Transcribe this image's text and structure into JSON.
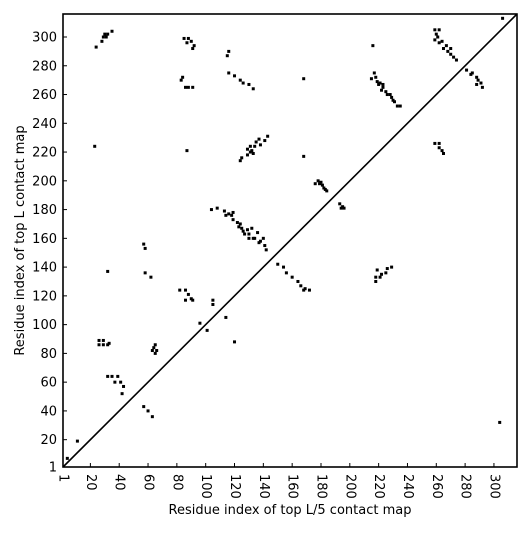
{
  "chart_data": {
    "type": "scatter",
    "title": "",
    "xlabel": "Residue index of top L/5 contact map",
    "ylabel": "Residue index of top L contact map",
    "xlim": [
      1,
      316
    ],
    "ylim": [
      1,
      316
    ],
    "xticks": [
      1,
      20,
      40,
      60,
      80,
      100,
      120,
      140,
      160,
      180,
      200,
      220,
      240,
      260,
      280,
      300
    ],
    "yticks": [
      1,
      20,
      40,
      60,
      80,
      100,
      120,
      140,
      160,
      180,
      200,
      220,
      240,
      260,
      280,
      300
    ],
    "diagonal": true,
    "grid": false,
    "marker_color": "#000000",
    "series": [
      {
        "values": [
          [
            4,
            7
          ],
          [
            11,
            19
          ],
          [
            57,
            43
          ],
          [
            60,
            40
          ],
          [
            63,
            36
          ],
          [
            42,
            52
          ],
          [
            43,
            57
          ],
          [
            41,
            60
          ],
          [
            37,
            60
          ],
          [
            39,
            64
          ],
          [
            35,
            64
          ],
          [
            32,
            64
          ],
          [
            26,
            86
          ],
          [
            29,
            86
          ],
          [
            32,
            86
          ],
          [
            33,
            87
          ],
          [
            29,
            89
          ],
          [
            26,
            89
          ],
          [
            65,
            80
          ],
          [
            63,
            82
          ],
          [
            66,
            82
          ],
          [
            64,
            84
          ],
          [
            65,
            86
          ],
          [
            120,
            88
          ],
          [
            101,
            96
          ],
          [
            96,
            101
          ],
          [
            114,
            105
          ],
          [
            105,
            114
          ],
          [
            105,
            117
          ],
          [
            82,
            124
          ],
          [
            86,
            124
          ],
          [
            88,
            121
          ],
          [
            90,
            118
          ],
          [
            91,
            117
          ],
          [
            86,
            117
          ],
          [
            62,
            133
          ],
          [
            58,
            136
          ],
          [
            32,
            137
          ],
          [
            150,
            142
          ],
          [
            154,
            140
          ],
          [
            156,
            136
          ],
          [
            160,
            133
          ],
          [
            164,
            130
          ],
          [
            166,
            127
          ],
          [
            169,
            125
          ],
          [
            172,
            124
          ],
          [
            168,
            124
          ],
          [
            142,
            152
          ],
          [
            141,
            155
          ],
          [
            137,
            157
          ],
          [
            133,
            160
          ],
          [
            130,
            163
          ],
          [
            126,
            165
          ],
          [
            123,
            168
          ],
          [
            122,
            171
          ],
          [
            119,
            173
          ],
          [
            116,
            177
          ],
          [
            114,
            176
          ],
          [
            118,
            176
          ],
          [
            119,
            178
          ],
          [
            113,
            179
          ],
          [
            108,
            181
          ],
          [
            104,
            180
          ],
          [
            125,
            167
          ],
          [
            129,
            166
          ],
          [
            127,
            163
          ],
          [
            130,
            160
          ],
          [
            134,
            160
          ],
          [
            138,
            158
          ],
          [
            140,
            160
          ],
          [
            136,
            164
          ],
          [
            132,
            167
          ],
          [
            124,
            170
          ],
          [
            58,
            153
          ],
          [
            57,
            156
          ],
          [
            178,
            200
          ],
          [
            179,
            198
          ],
          [
            181,
            197
          ],
          [
            182,
            195
          ],
          [
            183,
            194
          ],
          [
            184,
            193
          ],
          [
            180,
            199
          ],
          [
            176,
            198
          ],
          [
            193,
            184
          ],
          [
            195,
            182
          ],
          [
            196,
            181
          ],
          [
            194,
            181
          ],
          [
            168,
            217
          ],
          [
            87,
            221
          ],
          [
            23,
            224
          ],
          [
            124,
            214
          ],
          [
            125,
            216
          ],
          [
            129,
            218
          ],
          [
            131,
            220
          ],
          [
            132,
            221
          ],
          [
            131,
            224
          ],
          [
            134,
            224
          ],
          [
            138,
            225
          ],
          [
            135,
            227
          ],
          [
            141,
            228
          ],
          [
            137,
            229
          ],
          [
            143,
            231
          ],
          [
            129,
            222
          ],
          [
            133,
            219
          ],
          [
            218,
            130
          ],
          [
            218,
            133
          ],
          [
            221,
            133
          ],
          [
            222,
            135
          ],
          [
            225,
            136
          ],
          [
            226,
            139
          ],
          [
            229,
            140
          ],
          [
            219,
            138
          ],
          [
            259,
            226
          ],
          [
            262,
            226
          ],
          [
            262,
            223
          ],
          [
            264,
            221
          ],
          [
            265,
            219
          ],
          [
            215,
            271
          ],
          [
            218,
            272
          ],
          [
            219,
            269
          ],
          [
            220,
            267
          ],
          [
            223,
            265
          ],
          [
            222,
            263
          ],
          [
            225,
            262
          ],
          [
            226,
            260
          ],
          [
            228,
            260
          ],
          [
            229,
            258
          ],
          [
            231,
            255
          ],
          [
            230,
            256
          ],
          [
            233,
            252
          ],
          [
            235,
            252
          ],
          [
            217,
            275
          ],
          [
            221,
            268
          ],
          [
            223,
            267
          ],
          [
            259,
            305
          ],
          [
            262,
            305
          ],
          [
            260,
            302
          ],
          [
            261,
            300
          ],
          [
            264,
            297
          ],
          [
            262,
            296
          ],
          [
            267,
            294
          ],
          [
            265,
            292
          ],
          [
            268,
            290
          ],
          [
            270,
            288
          ],
          [
            272,
            286
          ],
          [
            274,
            284
          ],
          [
            270,
            292
          ],
          [
            259,
            298
          ],
          [
            281,
            277
          ],
          [
            285,
            275
          ],
          [
            288,
            272
          ],
          [
            289,
            270
          ],
          [
            291,
            268
          ],
          [
            292,
            265
          ],
          [
            288,
            267
          ],
          [
            284,
            274
          ],
          [
            168,
            271
          ],
          [
            216,
            294
          ],
          [
            304,
            32
          ],
          [
            306,
            313
          ],
          [
            85,
            299
          ],
          [
            88,
            299
          ],
          [
            87,
            296
          ],
          [
            90,
            297
          ],
          [
            92,
            294
          ],
          [
            91,
            292
          ],
          [
            86,
            265
          ],
          [
            88,
            265
          ],
          [
            91,
            265
          ],
          [
            83,
            270
          ],
          [
            84,
            272
          ],
          [
            115,
            287
          ],
          [
            116,
            290
          ],
          [
            116,
            275
          ],
          [
            120,
            273
          ],
          [
            124,
            270
          ],
          [
            126,
            268
          ],
          [
            130,
            267
          ],
          [
            133,
            264
          ],
          [
            28,
            297
          ],
          [
            29,
            300
          ],
          [
            31,
            300
          ],
          [
            32,
            302
          ],
          [
            30,
            302
          ],
          [
            35,
            304
          ],
          [
            24,
            293
          ]
        ]
      }
    ]
  }
}
